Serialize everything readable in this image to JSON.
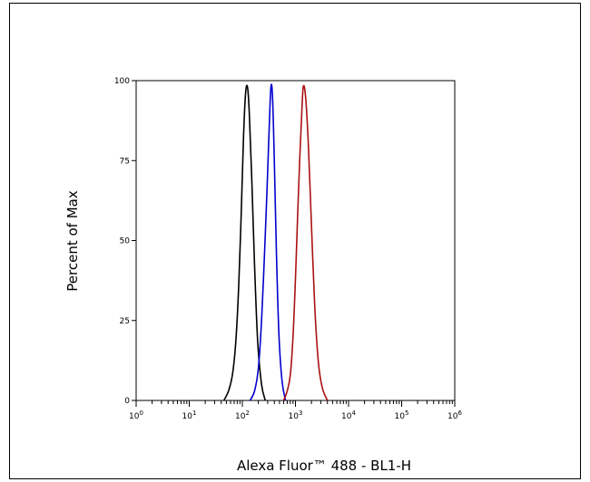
{
  "chart_data": {
    "type": "line",
    "title": "",
    "xlabel": "Alexa Fluor™ 488 - BL1-H",
    "ylabel": "Percent of Max",
    "x_scale": "log",
    "xlim": [
      1,
      1000000
    ],
    "ylim": [
      0,
      100
    ],
    "x_ticks": [
      {
        "value": 1,
        "base": "10",
        "exp": "0"
      },
      {
        "value": 10,
        "base": "10",
        "exp": "1"
      },
      {
        "value": 100,
        "base": "10",
        "exp": "2"
      },
      {
        "value": 1000,
        "base": "10",
        "exp": "3"
      },
      {
        "value": 10000,
        "base": "10",
        "exp": "4"
      },
      {
        "value": 100000,
        "base": "10",
        "exp": "5"
      },
      {
        "value": 1000000,
        "base": "10",
        "exp": "6"
      }
    ],
    "y_ticks": [
      {
        "value": 0,
        "label": "0"
      },
      {
        "value": 25,
        "label": "25"
      },
      {
        "value": 50,
        "label": "50"
      },
      {
        "value": 75,
        "label": "75"
      },
      {
        "value": 100,
        "label": "100"
      }
    ],
    "grid": false,
    "legend": "none",
    "series": [
      {
        "color": "#000000",
        "x": [
          45,
          55,
          65,
          75,
          85,
          95,
          105,
          115,
          125,
          135,
          150,
          170,
          195,
          230,
          270
        ],
        "y": [
          0,
          3,
          8,
          18,
          35,
          58,
          82,
          96,
          98,
          90,
          70,
          42,
          18,
          5,
          0
        ]
      },
      {
        "color": "#0000cc",
        "x": [
          140,
          170,
          200,
          230,
          260,
          290,
          320,
          345,
          370,
          400,
          440,
          490,
          560,
          650
        ],
        "y": [
          0,
          3,
          10,
          25,
          45,
          65,
          85,
          98,
          95,
          75,
          45,
          20,
          6,
          0
        ]
      },
      {
        "color": "#aa1111",
        "x": [
          600,
          700,
          800,
          900,
          1000,
          1100,
          1200,
          1300,
          1400,
          1550,
          1750,
          2000,
          2300,
          2700,
          3200,
          4000
        ],
        "y": [
          0,
          3,
          8,
          20,
          38,
          58,
          75,
          88,
          98,
          95,
          80,
          55,
          30,
          12,
          4,
          0
        ]
      }
    ]
  }
}
